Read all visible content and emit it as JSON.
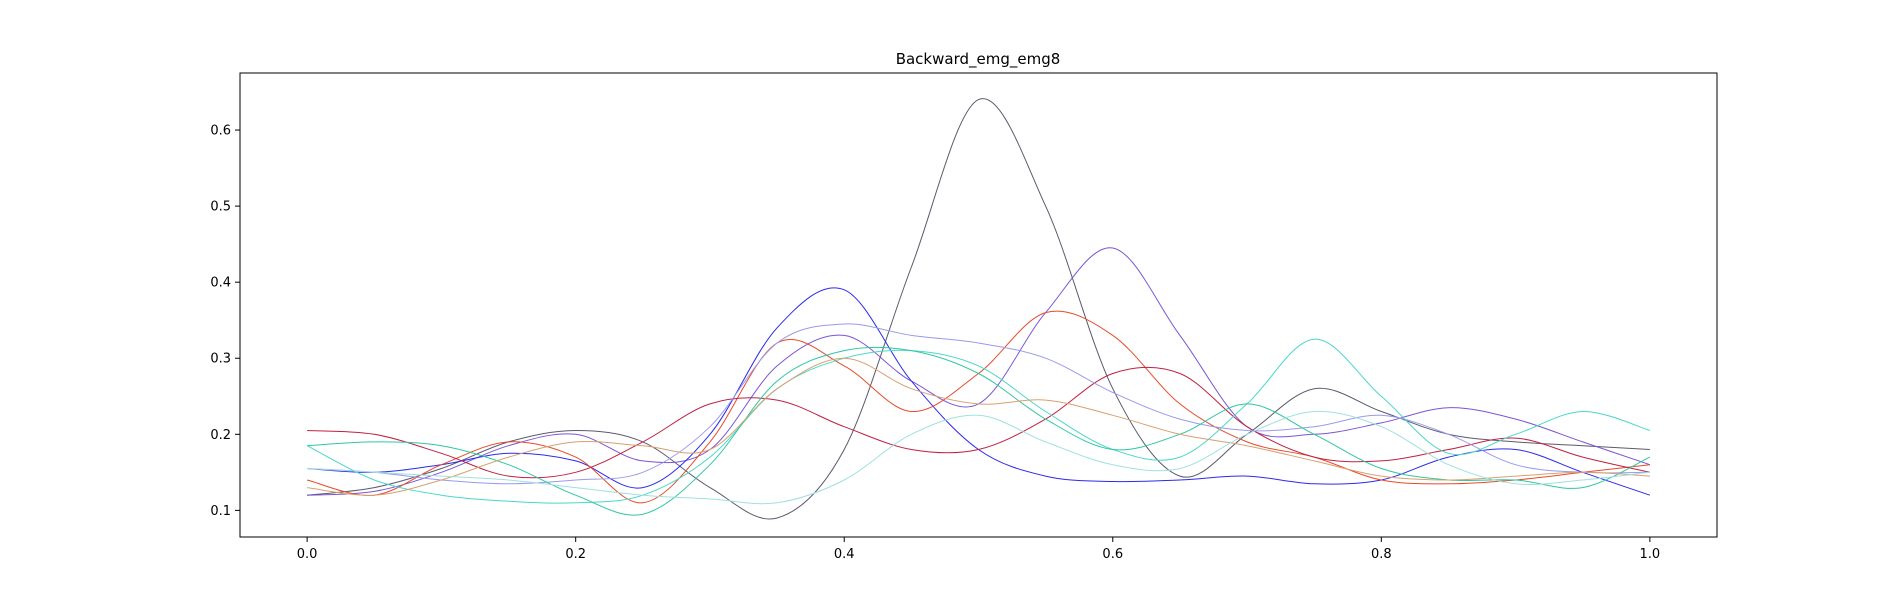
{
  "chart_data": {
    "type": "line",
    "title": "Backward_emg_emg8",
    "xlabel": "",
    "ylabel": "",
    "xlim": [
      -0.05,
      1.05
    ],
    "ylim": [
      0.065,
      0.675
    ],
    "x_ticks": [
      0.0,
      0.2,
      0.4,
      0.6,
      0.8,
      1.0
    ],
    "x_tick_labels": [
      "0.0",
      "0.2",
      "0.4",
      "0.6",
      "0.8",
      "1.0"
    ],
    "y_ticks": [
      0.1,
      0.2,
      0.3,
      0.4,
      0.5,
      0.6
    ],
    "y_tick_labels": [
      "0.1",
      "0.2",
      "0.3",
      "0.4",
      "0.5",
      "0.6"
    ],
    "grid": false,
    "legend": "none",
    "x": [
      0.0,
      0.05,
      0.1,
      0.15,
      0.2,
      0.25,
      0.3,
      0.35,
      0.4,
      0.45,
      0.5,
      0.55,
      0.6,
      0.65,
      0.7,
      0.75,
      0.8,
      0.85,
      0.9,
      0.95,
      1.0
    ],
    "series": [
      {
        "color": "#5a5a6e",
        "values": [
          0.12,
          0.13,
          0.155,
          0.19,
          0.205,
          0.19,
          0.13,
          0.09,
          0.18,
          0.42,
          0.64,
          0.5,
          0.26,
          0.145,
          0.2,
          0.26,
          0.23,
          0.2,
          0.19,
          0.185,
          0.18
        ]
      },
      {
        "color": "#7a55d8",
        "values": [
          0.12,
          0.125,
          0.15,
          0.185,
          0.2,
          0.165,
          0.18,
          0.29,
          0.33,
          0.27,
          0.24,
          0.36,
          0.445,
          0.33,
          0.21,
          0.2,
          0.215,
          0.235,
          0.22,
          0.19,
          0.16
        ]
      },
      {
        "color": "#2a2aee",
        "values": [
          0.155,
          0.15,
          0.16,
          0.175,
          0.165,
          0.13,
          0.2,
          0.34,
          0.39,
          0.27,
          0.18,
          0.145,
          0.138,
          0.14,
          0.145,
          0.135,
          0.14,
          0.17,
          0.18,
          0.15,
          0.12
        ]
      },
      {
        "color": "#e84a2a",
        "values": [
          0.14,
          0.12,
          0.16,
          0.19,
          0.17,
          0.11,
          0.19,
          0.32,
          0.29,
          0.23,
          0.28,
          0.36,
          0.33,
          0.24,
          0.19,
          0.17,
          0.14,
          0.135,
          0.14,
          0.15,
          0.16
        ]
      },
      {
        "color": "#c02040",
        "values": [
          0.205,
          0.2,
          0.175,
          0.145,
          0.15,
          0.19,
          0.24,
          0.245,
          0.21,
          0.18,
          0.18,
          0.22,
          0.28,
          0.28,
          0.21,
          0.17,
          0.165,
          0.18,
          0.195,
          0.17,
          0.15
        ]
      },
      {
        "color": "#9a9aee",
        "values": [
          0.155,
          0.15,
          0.14,
          0.135,
          0.14,
          0.15,
          0.21,
          0.32,
          0.345,
          0.33,
          0.32,
          0.3,
          0.255,
          0.22,
          0.205,
          0.21,
          0.225,
          0.2,
          0.16,
          0.15,
          0.15
        ]
      },
      {
        "color": "#4ad8c8",
        "values": [
          0.185,
          0.14,
          0.12,
          0.112,
          0.11,
          0.12,
          0.17,
          0.26,
          0.3,
          0.31,
          0.29,
          0.23,
          0.18,
          0.17,
          0.24,
          0.325,
          0.25,
          0.175,
          0.2,
          0.23,
          0.205
        ]
      },
      {
        "color": "#2ec8a0",
        "values": [
          0.185,
          0.19,
          0.185,
          0.16,
          0.12,
          0.095,
          0.16,
          0.27,
          0.31,
          0.31,
          0.28,
          0.22,
          0.18,
          0.2,
          0.24,
          0.2,
          0.155,
          0.14,
          0.14,
          0.13,
          0.17
        ]
      },
      {
        "color": "#d8a070",
        "values": [
          0.13,
          0.12,
          0.14,
          0.17,
          0.19,
          0.185,
          0.18,
          0.26,
          0.3,
          0.26,
          0.24,
          0.245,
          0.225,
          0.2,
          0.185,
          0.165,
          0.145,
          0.14,
          0.145,
          0.15,
          0.145
        ]
      },
      {
        "color": "#a0e0e0",
        "values": [
          0.155,
          0.15,
          0.145,
          0.14,
          0.13,
          0.12,
          0.115,
          0.11,
          0.14,
          0.2,
          0.225,
          0.19,
          0.16,
          0.155,
          0.2,
          0.23,
          0.21,
          0.16,
          0.135,
          0.14,
          0.15
        ]
      }
    ]
  }
}
